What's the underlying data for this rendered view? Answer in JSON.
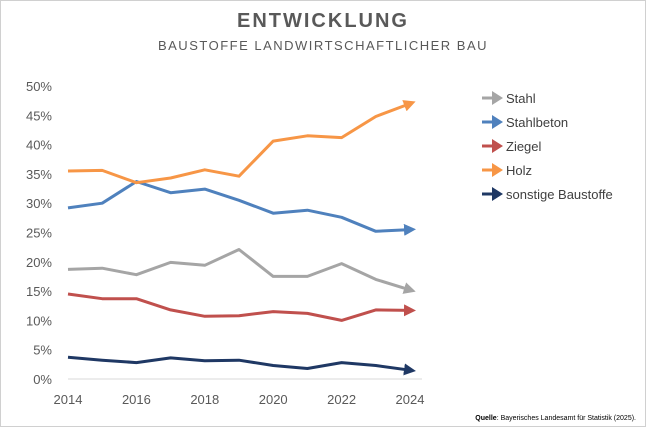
{
  "title": "ENTWICKLUNG",
  "subtitle": "BAUSTOFFE LANDWIRTSCHAFTLICHER BAU",
  "source_label": "Quelle",
  "source_text": ": Bayerisches Landesamt für Statistik (2025).",
  "chart_data": {
    "type": "line",
    "title": "ENTWICKLUNG",
    "subtitle": "BAUSTOFFE LANDWIRTSCHAFTLICHER BAU",
    "x": [
      2014,
      2015,
      2016,
      2017,
      2018,
      2019,
      2020,
      2021,
      2022,
      2023,
      2024
    ],
    "x_ticks": [
      2014,
      2016,
      2018,
      2020,
      2022,
      2024
    ],
    "x_tick_labels": [
      "2014",
      "2016",
      "2018",
      "2020",
      "2022",
      "2024"
    ],
    "y_ticks": [
      0,
      5,
      10,
      15,
      20,
      25,
      30,
      35,
      40,
      45,
      50
    ],
    "y_tick_labels": [
      "0%",
      "5%",
      "10%",
      "15%",
      "20%",
      "25%",
      "30%",
      "35%",
      "40%",
      "45%",
      "50%"
    ],
    "ylim": [
      0,
      50
    ],
    "xlim": [
      2014,
      2024
    ],
    "grid": false,
    "legend_position": "right",
    "series": [
      {
        "name": "Stahl",
        "color": "#a5a5a5",
        "values": [
          18.7,
          18.9,
          17.8,
          19.9,
          19.4,
          22.1,
          17.5,
          17.5,
          19.7,
          17.0,
          15.2
        ]
      },
      {
        "name": "Stahlbeton",
        "color": "#4f81bd",
        "values": [
          29.2,
          30.0,
          33.7,
          31.8,
          32.4,
          30.5,
          28.3,
          28.8,
          27.6,
          25.2,
          25.5
        ]
      },
      {
        "name": "Ziegel",
        "color": "#c0504d",
        "values": [
          14.5,
          13.7,
          13.7,
          11.8,
          10.7,
          10.8,
          11.5,
          11.2,
          10.0,
          11.8,
          11.7
        ]
      },
      {
        "name": "Holz",
        "color": "#f79646",
        "values": [
          35.5,
          35.6,
          33.5,
          34.3,
          35.7,
          34.6,
          40.6,
          41.5,
          41.2,
          44.8,
          47.0
        ]
      },
      {
        "name": "sonstige Baustoffe",
        "color": "#1f3864",
        "values": [
          3.7,
          3.2,
          2.8,
          3.6,
          3.1,
          3.2,
          2.3,
          1.8,
          2.8,
          2.3,
          1.5
        ]
      }
    ]
  }
}
